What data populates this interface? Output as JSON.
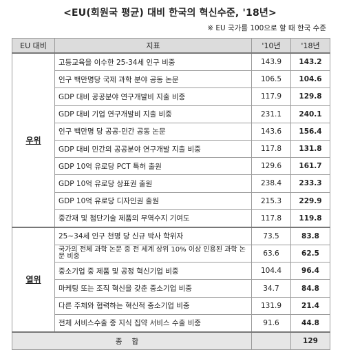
{
  "title": "<EU(회원국 평균) 대비 한국의 혁신수준, '18년>",
  "note": "※ EU 국가를 100으로 할 때 한국 수준",
  "headers": [
    "EU 대비",
    "지표",
    "'10년",
    "'18년"
  ],
  "groups": [
    {
      "label": "우위",
      "rows": [
        {
          "indicator": "고등교육을 이수한 25-34세 인구 비중",
          "y2010": "143.9",
          "y2018": "143.2"
        },
        {
          "indicator": "인구 백만명당 국제 과학 분야 공동 논문",
          "y2010": "106.5",
          "y2018": "104.6"
        },
        {
          "indicator": "GDP 대비 공공분야 연구개발비 지출 비중",
          "y2010": "117.9",
          "y2018": "129.8"
        },
        {
          "indicator": "GDP 대비 기업 연구개발비 지출 비중",
          "y2010": "231.1",
          "y2018": "240.1"
        },
        {
          "indicator": "인구 백만명 당 공공-민간 공동 논문",
          "y2010": "143.6",
          "y2018": "156.4"
        },
        {
          "indicator": "GDP 대비 민간의 공공분야 연구개발 지출 비중",
          "y2010": "117.8",
          "y2018": "131.8"
        },
        {
          "indicator": "GDP 10억 유로당 PCT 특허 출원",
          "y2010": "129.6",
          "y2018": "161.7"
        },
        {
          "indicator": "GDP 10억 유로당 상표권 출원",
          "y2010": "238.4",
          "y2018": "233.3"
        },
        {
          "indicator": "GDP 10억 유로당 디자인권 출원",
          "y2010": "215.3",
          "y2018": "229.9"
        },
        {
          "indicator": "중간재 및 첨단기술 제품의 무역수지 기여도",
          "y2010": "117.8",
          "y2018": "119.8"
        }
      ]
    },
    {
      "label": "열위",
      "rows": [
        {
          "indicator": "25~34세 인구 천명 당 신규 박사 학위자",
          "y2010": "73.5",
          "y2018": "83.8"
        },
        {
          "indicator": "국가의 전체 과학 논문 중 전 세계 상위 10% 이상 인용된 과학 논문 비중",
          "y2010": "63.6",
          "y2018": "62.5",
          "wrap": true
        },
        {
          "indicator": "중소기업 중 제품 및 공정 혁신기업 비중",
          "y2010": "104.4",
          "y2018": "96.4"
        },
        {
          "indicator": "마케팅 또는 조직 혁신을 갖춘 중소기업 비중",
          "y2010": "34.7",
          "y2018": "84.8"
        },
        {
          "indicator": "다른 주체와 협력하는 혁신적 중소기업 비중",
          "y2010": "131.9",
          "y2018": "21.4"
        },
        {
          "indicator": "전체 서비스수출 중 지식 집약 서비스 수출 비중",
          "y2010": "91.6",
          "y2018": "44.8"
        }
      ]
    }
  ],
  "total": {
    "label": "종합",
    "y2010": "",
    "y2018": "129"
  }
}
